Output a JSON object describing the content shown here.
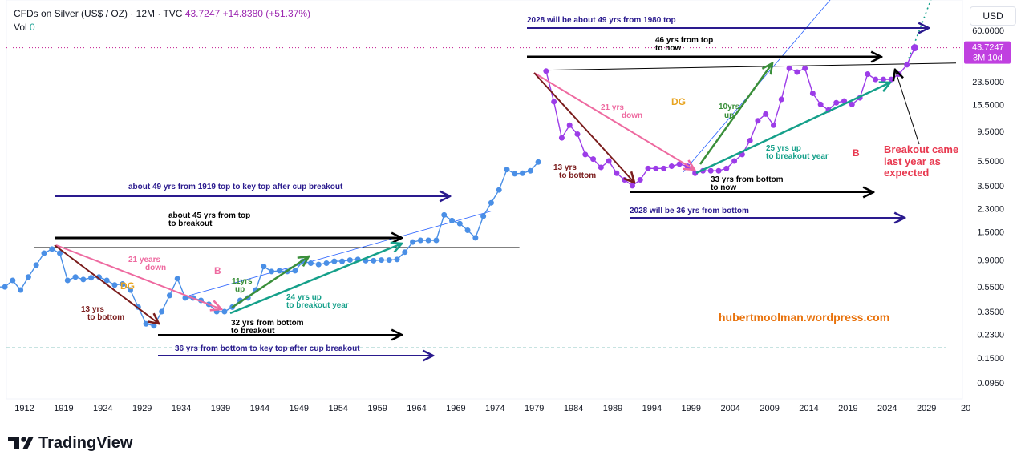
{
  "header": {
    "symbol": "CFDs on Silver (US$ / OZ) · 12M · TVC",
    "price": "43.7247",
    "change": "+14.8380 (+51.37%)",
    "vol_label": "Vol",
    "vol_value": "0"
  },
  "currency_button": "USD",
  "brand": "TradingView",
  "colors": {
    "blue_series": "#4a8fe6",
    "purple_series": "#9c3ce8",
    "black": "#000000",
    "navy": "#2a1a8e",
    "pink": "#ee6aa0",
    "maroon": "#7a1c1c",
    "green": "#3a8f3a",
    "teal": "#15a08a",
    "orange": "#e8a420",
    "crimson": "#e8384f",
    "watermark": "#e8720c"
  },
  "chart_data": {
    "type": "line",
    "y_scale": "log",
    "ylim": [
      0.08,
      80
    ],
    "xlim": [
      1908.5,
      2030
    ],
    "x_tick_labels": [
      "1912",
      "1919",
      "1924",
      "1929",
      "1934",
      "1939",
      "1944",
      "1949",
      "1954",
      "1959",
      "1964",
      "1969",
      "1974",
      "1979",
      "1984",
      "1989",
      "1994",
      "1999",
      "2004",
      "2009",
      "2014",
      "2019",
      "2024",
      "2029",
      "20"
    ],
    "y_tick_labels": [
      "60.0000",
      "23.5000",
      "15.5000",
      "9.5000",
      "5.5000",
      "3.5000",
      "2.3000",
      "1.5000",
      "0.9000",
      "0.5500",
      "0.3500",
      "0.2300",
      "0.1500",
      "0.0950"
    ],
    "y_tick_values": [
      60,
      23.5,
      15.5,
      9.5,
      5.5,
      3.5,
      2.3,
      1.5,
      0.9,
      0.55,
      0.35,
      0.23,
      0.15,
      0.095
    ],
    "last_price_label": "43.7247",
    "countdown_label": "3M 10d",
    "series": [
      {
        "color": "blue",
        "x": [
          1908.5,
          1909.5,
          1910.5,
          1911.5,
          1912.5,
          1913.5,
          1914.5,
          1915.5,
          1916.5,
          1917.5,
          1918.5,
          1919.5,
          1920.5,
          1921.5,
          1922.5,
          1923.5,
          1924.5,
          1925.5,
          1926.5,
          1927.5,
          1928.5,
          1929.5,
          1930.5,
          1931.5,
          1932.5,
          1933.5,
          1934.5,
          1935.5,
          1936.5,
          1937.5,
          1938.5,
          1939.5,
          1940.5,
          1941.5,
          1942.5,
          1943.5,
          1944.5,
          1945.5,
          1946.5,
          1947.5,
          1948.5,
          1949.5,
          1950.5,
          1951.5,
          1952.5,
          1953.5,
          1954.5,
          1955.5,
          1956.5,
          1957.5,
          1958.5,
          1959.5,
          1960.5,
          1961.5,
          1962.5,
          1963.5,
          1964.5,
          1965.5,
          1966.5,
          1967.5,
          1968.5,
          1969.5,
          1970.5,
          1971.5,
          1972.5,
          1973.5,
          1974.5,
          1975.5,
          1976.5,
          1977.5
        ],
        "y": [
          0.55,
          0.55,
          0.62,
          0.52,
          0.66,
          0.82,
          1.02,
          1.1,
          1.02,
          0.62,
          0.66,
          0.63,
          0.65,
          0.66,
          0.62,
          0.57,
          0.58,
          0.52,
          0.38,
          0.28,
          0.27,
          0.35,
          0.47,
          0.64,
          0.45,
          0.45,
          0.43,
          0.4,
          0.35,
          0.35,
          0.38,
          0.43,
          0.45,
          0.52,
          0.8,
          0.73,
          0.74,
          0.73,
          0.74,
          0.88,
          0.85,
          0.83,
          0.85,
          0.88,
          0.88,
          0.9,
          0.91,
          0.89,
          0.89,
          0.9,
          0.9,
          0.91,
          1.04,
          1.25,
          1.29,
          1.29,
          1.29,
          2.05,
          1.85,
          1.75,
          1.55,
          1.35,
          2.0,
          2.56,
          3.24,
          4.71,
          4.36,
          4.4,
          4.6,
          5.4
        ]
      },
      {
        "color": "purple",
        "x": [
          1978.5,
          1979.5,
          1980.5,
          1981.5,
          1982.5,
          1983.5,
          1984.5,
          1985.5,
          1986.5,
          1987.5,
          1988.5,
          1989.5,
          1990.5,
          1991.5,
          1992.5,
          1993.5,
          1994.5,
          1995.5,
          1996.5,
          1997.5,
          1998.5,
          1999.5,
          2000.5,
          2001.5,
          2002.5,
          2003.5,
          2004.5,
          2005.5,
          2006.5,
          2007.5,
          2008.5,
          2009.5,
          2010.5,
          2011.5,
          2012.5,
          2013.5,
          2014.5,
          2015.5,
          2016.5,
          2017.5,
          2018.5,
          2019.5,
          2020.5,
          2021.5,
          2022.5,
          2023.5,
          2024.5,
          2025.5
        ],
        "y": [
          28.5,
          16.3,
          8.4,
          10.6,
          9.0,
          6.2,
          5.7,
          4.9,
          5.5,
          4.4,
          3.9,
          3.5,
          3.9,
          4.8,
          4.8,
          4.8,
          5.0,
          5.2,
          5.0,
          4.4,
          4.6,
          4.6,
          4.6,
          4.8,
          5.5,
          6.2,
          8.0,
          11.5,
          13.0,
          10.6,
          17.0,
          30.0,
          28.0,
          30.0,
          19.0,
          15.5,
          14.0,
          16.0,
          16.5,
          15.5,
          17.5,
          27.0,
          24.5,
          24.5,
          24.5,
          27.0,
          32.0,
          43.7247
        ]
      }
    ],
    "annotations": [
      "2028 will be about 49 yrs  from 1980 top",
      "46 yrs from top",
      "to now",
      "21 yrs",
      "down",
      "DG",
      "10yrs",
      "up",
      "13 yrs",
      "to bottom",
      "25 yrs up",
      "to breakout year",
      "B",
      "Breakout came",
      "last year as",
      "expected",
      "33 yrs from bottom",
      "to now",
      "2028 will be 36 yrs from bottom",
      "about 49 yrs from 1919 top to key top after cup breakout",
      "about 45 yrs from top",
      "to breakout",
      "21 years",
      "down",
      "B",
      "DG",
      "11yrs",
      "up",
      "24 yrs up",
      "to breakout year",
      "13 yrs",
      "to bottom",
      "32 yrs from bottom",
      "to breakout",
      "36 yrs from bottom to key top after cup breakout",
      "hubertmoolman.wordpress.com"
    ]
  }
}
